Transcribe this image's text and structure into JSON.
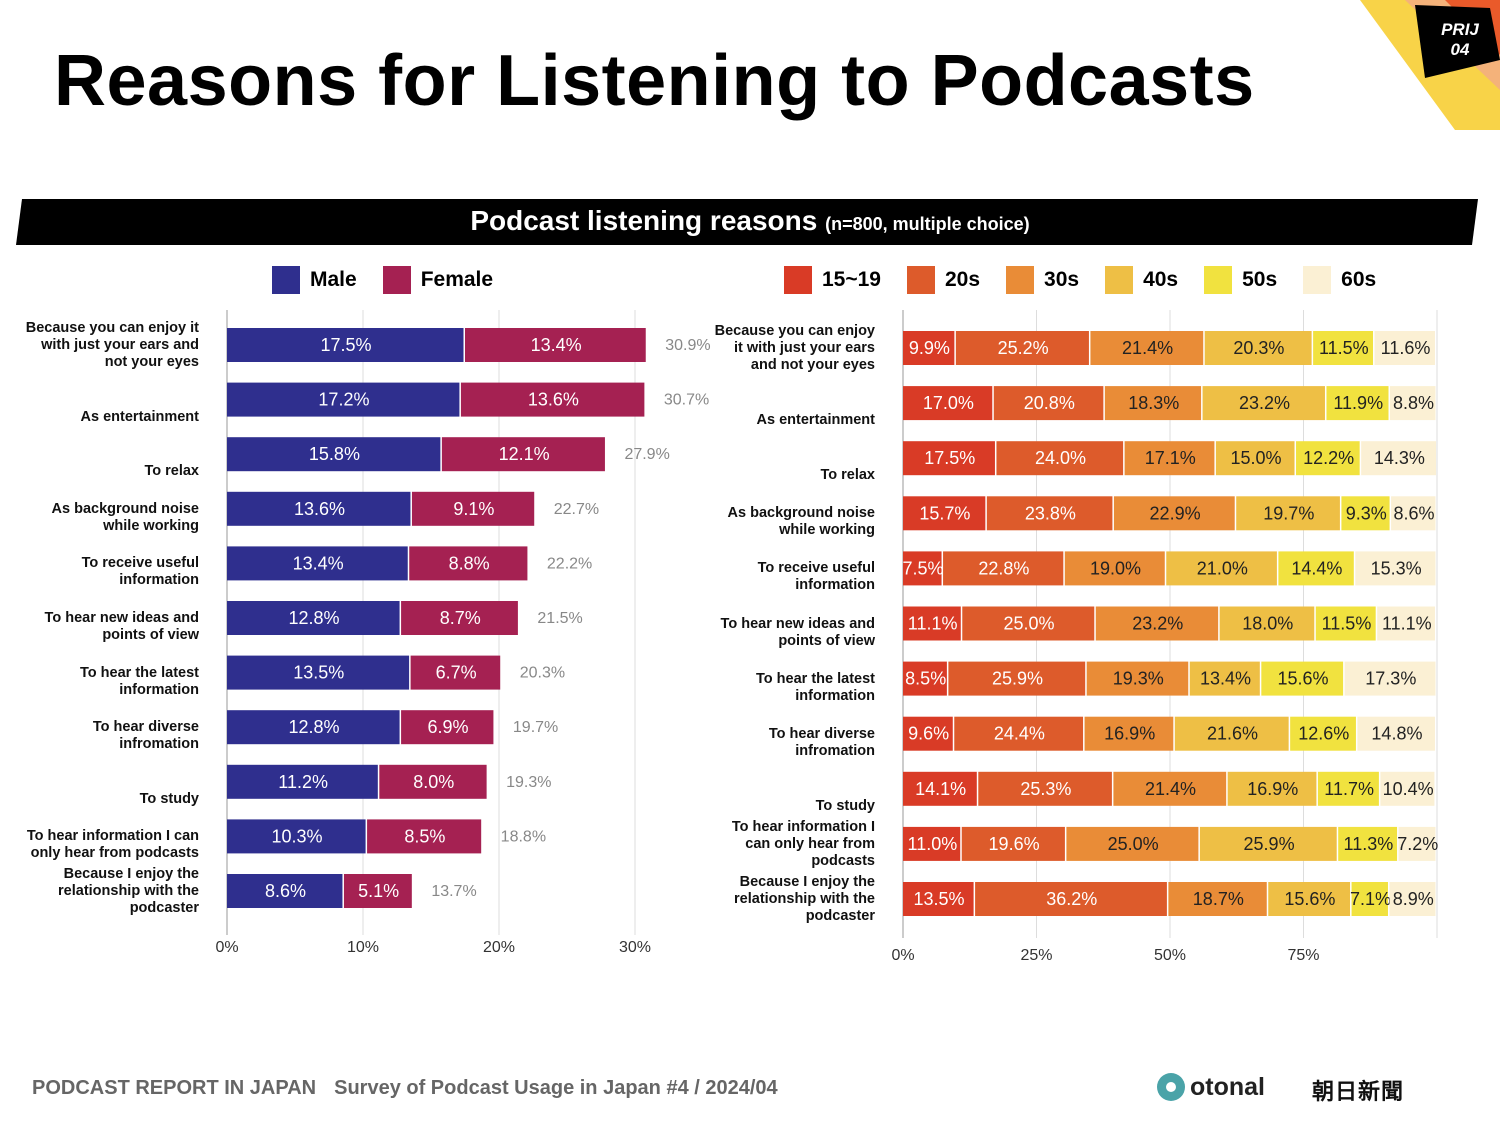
{
  "title": "Reasons for Listening to Podcasts",
  "badge": {
    "line1": "PRIJ",
    "line2": "04"
  },
  "banner": {
    "title": "Podcast listening reasons",
    "note": "(n=800, multiple choice)"
  },
  "footer": {
    "report": "PODCAST REPORT IN JAPAN",
    "survey": "Survey of Podcast Usage in Japan #4 / 2024/04",
    "logo_otonal": "otonal",
    "logo_asahi": "朝日新聞"
  },
  "categories": [
    "Because you can enjoy it with just your ears and not your eyes",
    "As entertainment",
    "To relax",
    "As background noise while working",
    "To receive useful information",
    "To hear new ideas and points of view",
    "To hear the latest information",
    "To hear diverse infromation",
    "To  study",
    "To hear information I can only hear from podcasts",
    "Because I enjoy the relationship with the podcaster"
  ],
  "chart_data": [
    {
      "type": "bar",
      "stacked": true,
      "orientation": "horizontal",
      "xlim": [
        0,
        30
      ],
      "xticks": [
        "0%",
        "10%",
        "20%",
        "30%"
      ],
      "legend_position": "top",
      "series": [
        {
          "name": "Male",
          "color": "#2f2f8e",
          "values": [
            17.5,
            17.2,
            15.8,
            13.6,
            13.4,
            12.8,
            13.5,
            12.8,
            11.2,
            10.3,
            8.6
          ]
        },
        {
          "name": "Female",
          "color": "#a52152",
          "values": [
            13.4,
            13.6,
            12.1,
            9.1,
            8.8,
            8.7,
            6.7,
            6.9,
            8.0,
            8.5,
            5.1
          ]
        }
      ],
      "totals": [
        "30.9%",
        "30.7%",
        "27.9%",
        "22.7%",
        "22.2%",
        "21.5%",
        "20.3%",
        "19.7%",
        "19.3%",
        "18.8%",
        "13.7%"
      ]
    },
    {
      "type": "bar",
      "stacked": true,
      "orientation": "horizontal",
      "xlim": [
        0,
        100
      ],
      "xticks": [
        "0%",
        "25%",
        "50%",
        "75%"
      ],
      "legend_position": "top",
      "series": [
        {
          "name": "15~19",
          "color": "#d93b26",
          "values": [
            9.9,
            17.0,
            17.5,
            15.7,
            7.5,
            11.1,
            8.5,
            9.6,
            14.1,
            11.0,
            13.5
          ]
        },
        {
          "name": "20s",
          "color": "#dd5b2b",
          "values": [
            25.2,
            20.8,
            24.0,
            23.8,
            22.8,
            25.0,
            25.9,
            24.4,
            25.3,
            19.6,
            36.2
          ]
        },
        {
          "name": "30s",
          "color": "#e98c37",
          "values": [
            21.4,
            18.3,
            17.1,
            22.9,
            19.0,
            23.2,
            19.3,
            16.9,
            21.4,
            25.0,
            18.7
          ]
        },
        {
          "name": "40s",
          "color": "#eebf45",
          "values": [
            20.3,
            23.2,
            15.0,
            19.7,
            21.0,
            18.0,
            13.4,
            21.6,
            16.9,
            25.9,
            15.6
          ]
        },
        {
          "name": "50s",
          "color": "#f1e23f",
          "values": [
            11.5,
            11.9,
            12.2,
            9.3,
            14.4,
            11.5,
            15.6,
            12.6,
            11.7,
            11.3,
            7.1
          ]
        },
        {
          "name": "60s",
          "color": "#fbf0d4",
          "values": [
            11.6,
            8.8,
            14.3,
            8.6,
            15.3,
            11.1,
            17.3,
            14.8,
            10.4,
            7.2,
            8.9
          ]
        }
      ]
    }
  ]
}
